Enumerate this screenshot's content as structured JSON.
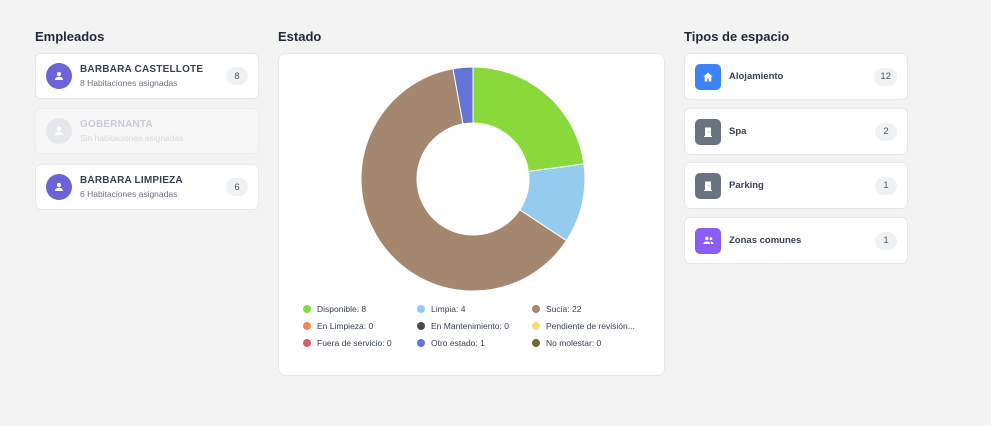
{
  "sections": {
    "employees_title": "Empleados",
    "status_title": "Estado",
    "space_types_title": "Tipos de espacio"
  },
  "employees": [
    {
      "name": "BÁRBARA CASTELLOTE",
      "subtitle": "8 Habitaciones asignadas",
      "count": "8",
      "disabled": false
    },
    {
      "name": "GOBERNANTA",
      "subtitle": "Sin habitaciones asignadas",
      "count": "",
      "disabled": true
    },
    {
      "name": "BÁRBARA LIMPIEZA",
      "subtitle": "6 Habitaciones asignadas",
      "count": "6",
      "disabled": false
    }
  ],
  "chart_data": {
    "type": "pie",
    "donut": true,
    "categories": [
      "Disponible",
      "Limpia",
      "Sucia",
      "En Limpieza",
      "En Mantenimiento",
      "Pendiente de revisión",
      "Fuera de servicio",
      "Otro estado",
      "No molestar"
    ],
    "values": [
      8,
      4,
      22,
      0,
      0,
      0,
      0,
      1,
      0
    ],
    "colors": [
      "#8ad93a",
      "#94cbee",
      "#a4876e",
      "#ef8a56",
      "#4a4a4a",
      "#f2dc78",
      "#d45d68",
      "#6473d6",
      "#6f6b38"
    ],
    "legend_labels": [
      "Disponible: 8",
      "Limpia: 4",
      "Sucia: 22",
      "En Limpieza: 0",
      "En Mantenimiento: 0",
      "Pendiente de revisión...",
      "Fuera de servicio: 0",
      "Otro estado: 1",
      "No molestar: 0"
    ],
    "legend_position": "bottom"
  },
  "space_types": [
    {
      "label": "Alojamiento",
      "count": "12",
      "icon": "home-icon",
      "color": "#3b82f6"
    },
    {
      "label": "Spa",
      "count": "2",
      "icon": "door-icon",
      "color": "#6b7280"
    },
    {
      "label": "Parking",
      "count": "1",
      "icon": "door-icon",
      "color": "#6b7280"
    },
    {
      "label": "Zonas comunes",
      "count": "1",
      "icon": "group-icon",
      "color": "#8b5cf6"
    }
  ]
}
